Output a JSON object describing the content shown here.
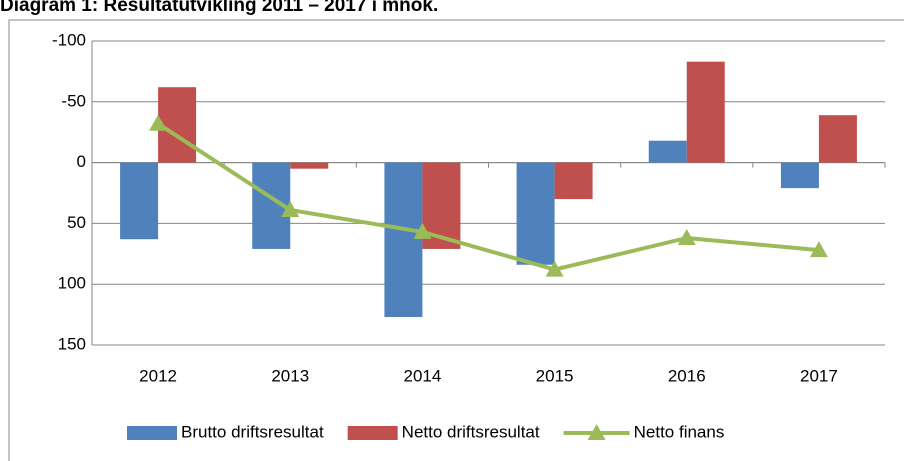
{
  "chart_data": {
    "type": "bar_line",
    "title": "Diagram 1: Resultatutvikling 2011 – 2017 i mnok.",
    "categories": [
      "2012",
      "2013",
      "2014",
      "2015",
      "2016",
      "2017"
    ],
    "series": [
      {
        "name": "Brutto driftsresultat",
        "type": "bar",
        "color": "#4f81bd",
        "values": [
          63,
          71,
          127,
          84,
          -18,
          21
        ]
      },
      {
        "name": "Netto driftsresultat",
        "type": "bar",
        "color": "#c0504d",
        "values": [
          -62,
          5,
          71,
          30,
          -83,
          -39
        ]
      },
      {
        "name": "Netto finans",
        "type": "line",
        "color": "#9bbb59",
        "values": [
          -32,
          39,
          57,
          88,
          62,
          72
        ]
      }
    ],
    "ylim": [
      -100,
      150
    ],
    "y_inverted": true,
    "yticks": [
      -100,
      -50,
      0,
      50,
      100,
      150
    ],
    "grid": true,
    "legend": "bottom"
  }
}
